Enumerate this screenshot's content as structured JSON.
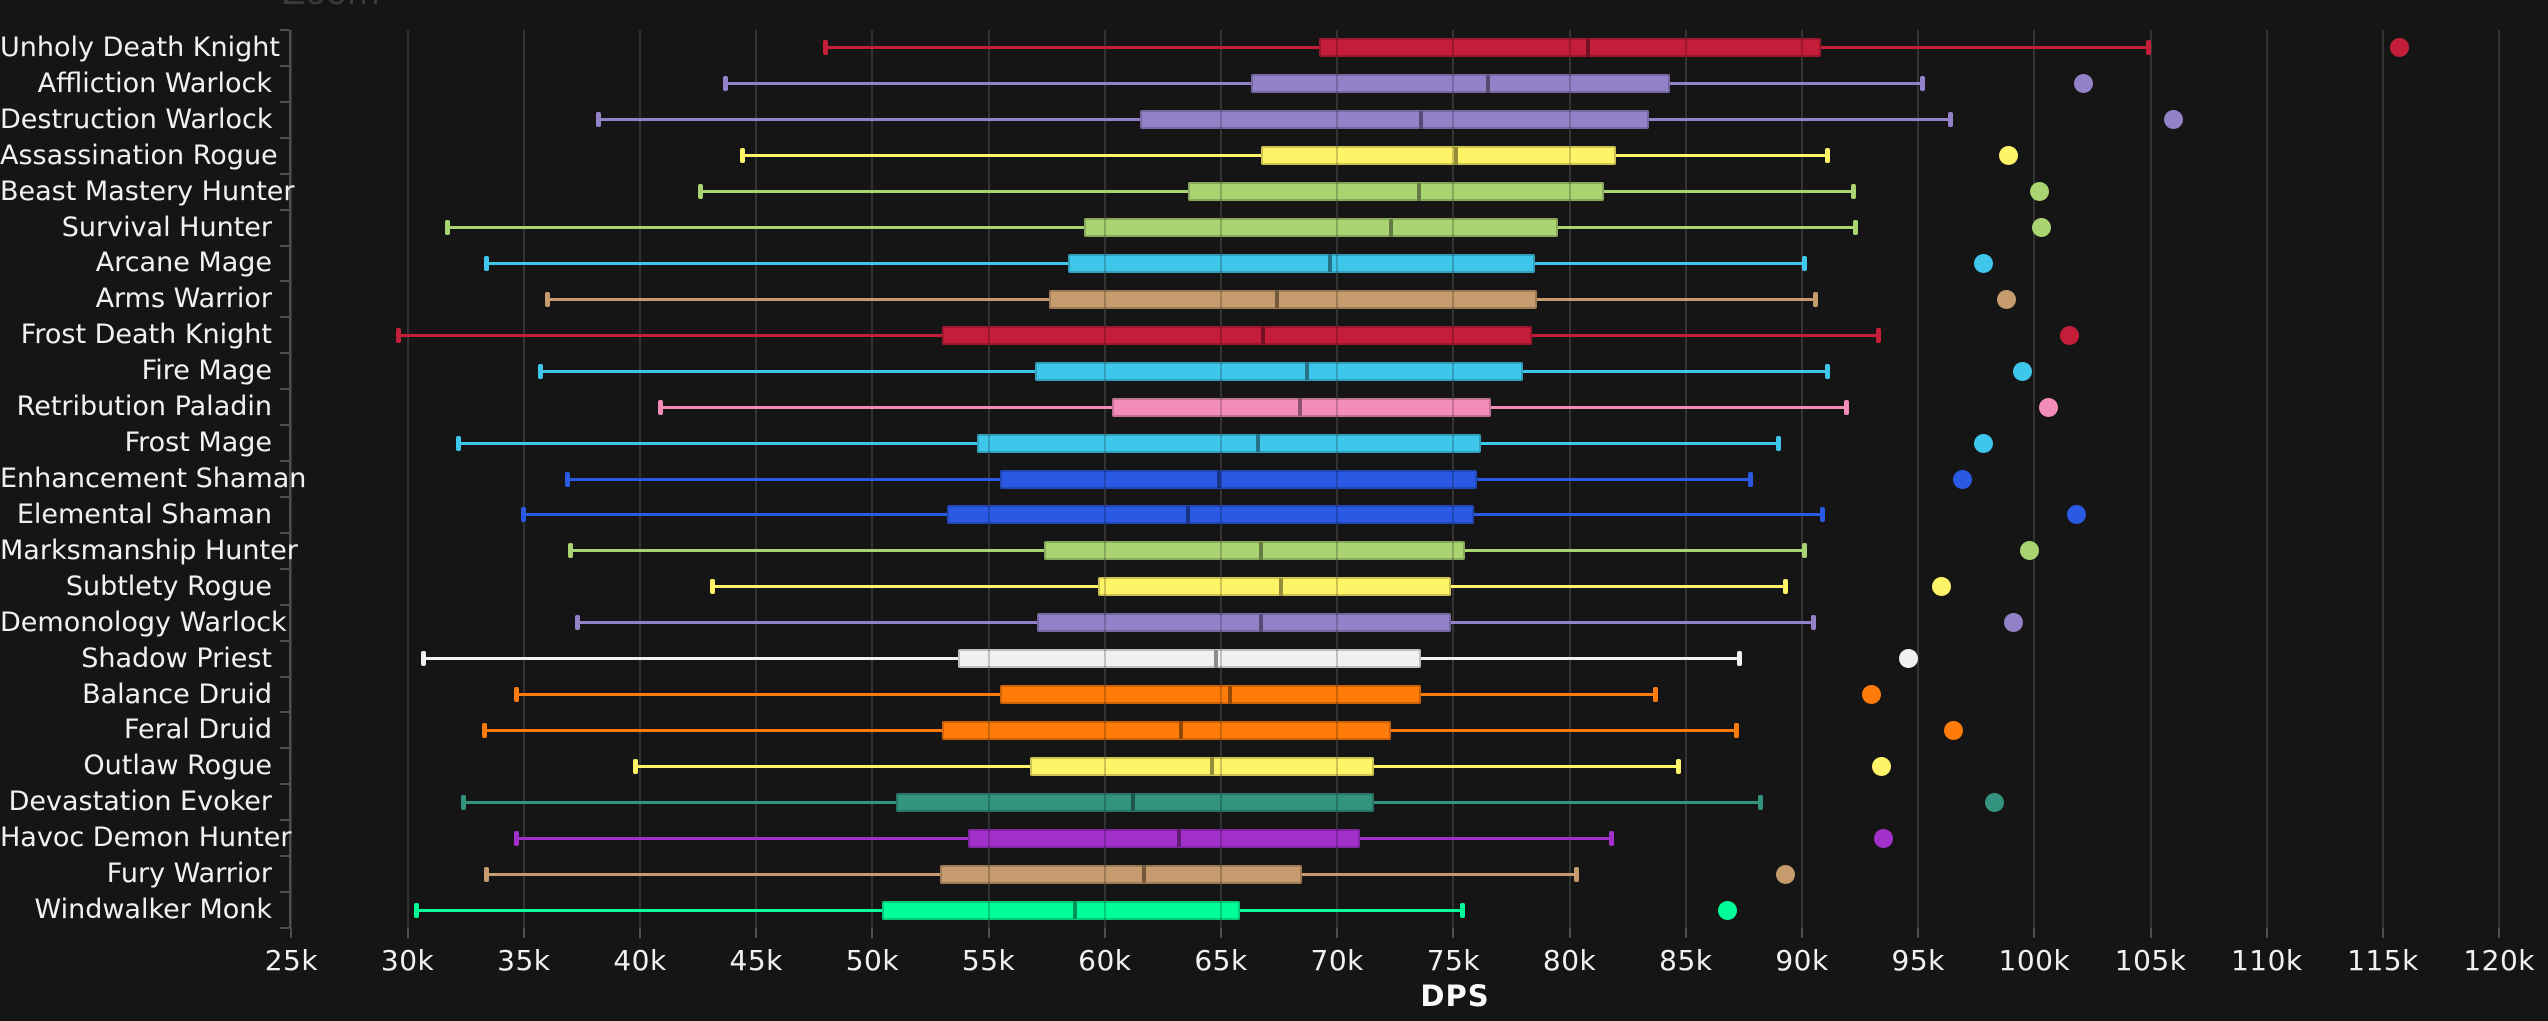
{
  "controls": {
    "zoom_label": "Zoom"
  },
  "x_axis": {
    "label": "DPS",
    "min": 25000,
    "max": 120000,
    "step": 5000,
    "tick_labels": [
      "25k",
      "30k",
      "35k",
      "40k",
      "45k",
      "50k",
      "55k",
      "60k",
      "65k",
      "70k",
      "75k",
      "80k",
      "85k",
      "90k",
      "95k",
      "100k",
      "105k",
      "110k",
      "115k",
      "120k"
    ]
  },
  "colors": {
    "background": "#151515",
    "grid": "#333333",
    "axis": "#4f4f4f",
    "text": "#f1f1f1",
    "muted_title": "#3a3a3a"
  },
  "chart_data": {
    "type": "boxplot",
    "orientation": "horizontal",
    "title": "Zoom",
    "xlabel": "DPS",
    "ylabel": "",
    "xlim": [
      25000,
      120000
    ],
    "grid": true,
    "legend_position": "none",
    "categories": [
      "Unholy Death Knight",
      "Affliction Warlock",
      "Destruction Warlock",
      "Assassination Rogue",
      "Beast Mastery Hunter",
      "Survival Hunter",
      "Arcane Mage",
      "Arms Warrior",
      "Frost Death Knight",
      "Fire Mage",
      "Retribution Paladin",
      "Frost Mage",
      "Enhancement Shaman",
      "Elemental Shaman",
      "Marksmanship Hunter",
      "Subtlety Rogue",
      "Demonology Warlock",
      "Shadow Priest",
      "Balance Druid",
      "Feral Druid",
      "Outlaw Rogue",
      "Devastation Evoker",
      "Havoc Demon Hunter",
      "Fury Warrior",
      "Windwalker Monk"
    ],
    "series": [
      {
        "name": "Unholy Death Knight",
        "class": "Death Knight",
        "color": "#C41E3A",
        "low": 48000,
        "q1": 69200,
        "median": 80800,
        "q3": 90800,
        "high": 104900,
        "outlier": 115700
      },
      {
        "name": "Affliction Warlock",
        "class": "Warlock",
        "color": "#9482C9",
        "low": 43700,
        "q1": 66300,
        "median": 76500,
        "q3": 84300,
        "high": 95200,
        "outlier": 102100
      },
      {
        "name": "Destruction Warlock",
        "class": "Warlock",
        "color": "#9482C9",
        "low": 38200,
        "q1": 61500,
        "median": 73600,
        "q3": 83400,
        "high": 96400,
        "outlier": 106000
      },
      {
        "name": "Assassination Rogue",
        "class": "Rogue",
        "color": "#FFF468",
        "low": 44400,
        "q1": 66700,
        "median": 75100,
        "q3": 82000,
        "high": 91100,
        "outlier": 98900
      },
      {
        "name": "Beast Mastery Hunter",
        "class": "Hunter",
        "color": "#AAD372",
        "low": 42600,
        "q1": 63600,
        "median": 73500,
        "q3": 81500,
        "high": 92200,
        "outlier": 100200
      },
      {
        "name": "Survival Hunter",
        "class": "Hunter",
        "color": "#AAD372",
        "low": 31700,
        "q1": 59100,
        "median": 72300,
        "q3": 79500,
        "high": 92300,
        "outlier": 100300
      },
      {
        "name": "Arcane Mage",
        "class": "Mage",
        "color": "#3FC7EB",
        "low": 33400,
        "q1": 58400,
        "median": 69700,
        "q3": 78500,
        "high": 90100,
        "outlier": 97800
      },
      {
        "name": "Arms Warrior",
        "class": "Warrior",
        "color": "#C69B6D",
        "low": 36000,
        "q1": 57600,
        "median": 67400,
        "q3": 78600,
        "high": 90600,
        "outlier": 98800
      },
      {
        "name": "Frost Death Knight",
        "class": "Death Knight",
        "color": "#C41E3A",
        "low": 29600,
        "q1": 53000,
        "median": 66800,
        "q3": 78400,
        "high": 93300,
        "outlier": 101500
      },
      {
        "name": "Fire Mage",
        "class": "Mage",
        "color": "#3FC7EB",
        "low": 35700,
        "q1": 57000,
        "median": 68700,
        "q3": 78000,
        "high": 91100,
        "outlier": 99500
      },
      {
        "name": "Retribution Paladin",
        "class": "Paladin",
        "color": "#F48CBA",
        "low": 40900,
        "q1": 60300,
        "median": 68400,
        "q3": 76600,
        "high": 91900,
        "outlier": 100600
      },
      {
        "name": "Frost Mage",
        "class": "Mage",
        "color": "#3FC7EB",
        "low": 32200,
        "q1": 54500,
        "median": 66600,
        "q3": 76200,
        "high": 89000,
        "outlier": 97800
      },
      {
        "name": "Enhancement Shaman",
        "class": "Shaman",
        "color": "#2A5AE4",
        "low": 36900,
        "q1": 55500,
        "median": 64900,
        "q3": 76000,
        "high": 87800,
        "outlier": 96900
      },
      {
        "name": "Elemental Shaman",
        "class": "Shaman",
        "color": "#2A5AE4",
        "low": 35000,
        "q1": 53200,
        "median": 63600,
        "q3": 75900,
        "high": 90900,
        "outlier": 101800
      },
      {
        "name": "Marksmanship Hunter",
        "class": "Hunter",
        "color": "#AAD372",
        "low": 37000,
        "q1": 57400,
        "median": 66700,
        "q3": 75500,
        "high": 90100,
        "outlier": 99800
      },
      {
        "name": "Subtlety Rogue",
        "class": "Rogue",
        "color": "#FFF468",
        "low": 43100,
        "q1": 59700,
        "median": 67600,
        "q3": 74900,
        "high": 89300,
        "outlier": 96000
      },
      {
        "name": "Demonology Warlock",
        "class": "Warlock",
        "color": "#9482C9",
        "low": 37300,
        "q1": 57100,
        "median": 66700,
        "q3": 74900,
        "high": 90500,
        "outlier": 99100
      },
      {
        "name": "Shadow Priest",
        "class": "Priest",
        "color": "#F0F0F0",
        "low": 30700,
        "q1": 53700,
        "median": 64800,
        "q3": 73600,
        "high": 87300,
        "outlier": 94600
      },
      {
        "name": "Balance Druid",
        "class": "Druid",
        "color": "#FF7C0A",
        "low": 34700,
        "q1": 55500,
        "median": 65400,
        "q3": 73600,
        "high": 83700,
        "outlier": 93000
      },
      {
        "name": "Feral Druid",
        "class": "Druid",
        "color": "#FF7C0A",
        "low": 33300,
        "q1": 53000,
        "median": 63300,
        "q3": 72300,
        "high": 87200,
        "outlier": 96500
      },
      {
        "name": "Outlaw Rogue",
        "class": "Rogue",
        "color": "#FFF468",
        "low": 39800,
        "q1": 56800,
        "median": 64600,
        "q3": 71600,
        "high": 84700,
        "outlier": 93400
      },
      {
        "name": "Devastation Evoker",
        "class": "Evoker",
        "color": "#33937F",
        "low": 32400,
        "q1": 51000,
        "median": 61200,
        "q3": 71600,
        "high": 88200,
        "outlier": 98300
      },
      {
        "name": "Havoc Demon Hunter",
        "class": "Demon Hunter",
        "color": "#A330C9",
        "low": 34700,
        "q1": 54100,
        "median": 63200,
        "q3": 71000,
        "high": 81800,
        "outlier": 93500
      },
      {
        "name": "Fury Warrior",
        "class": "Warrior",
        "color": "#C69B6D",
        "low": 33400,
        "q1": 52900,
        "median": 61700,
        "q3": 68500,
        "high": 80300,
        "outlier": 89300
      },
      {
        "name": "Windwalker Monk",
        "class": "Monk",
        "color": "#00FF98",
        "low": 30400,
        "q1": 50400,
        "median": 58700,
        "q3": 65800,
        "high": 75400,
        "outlier": 86800
      }
    ]
  }
}
